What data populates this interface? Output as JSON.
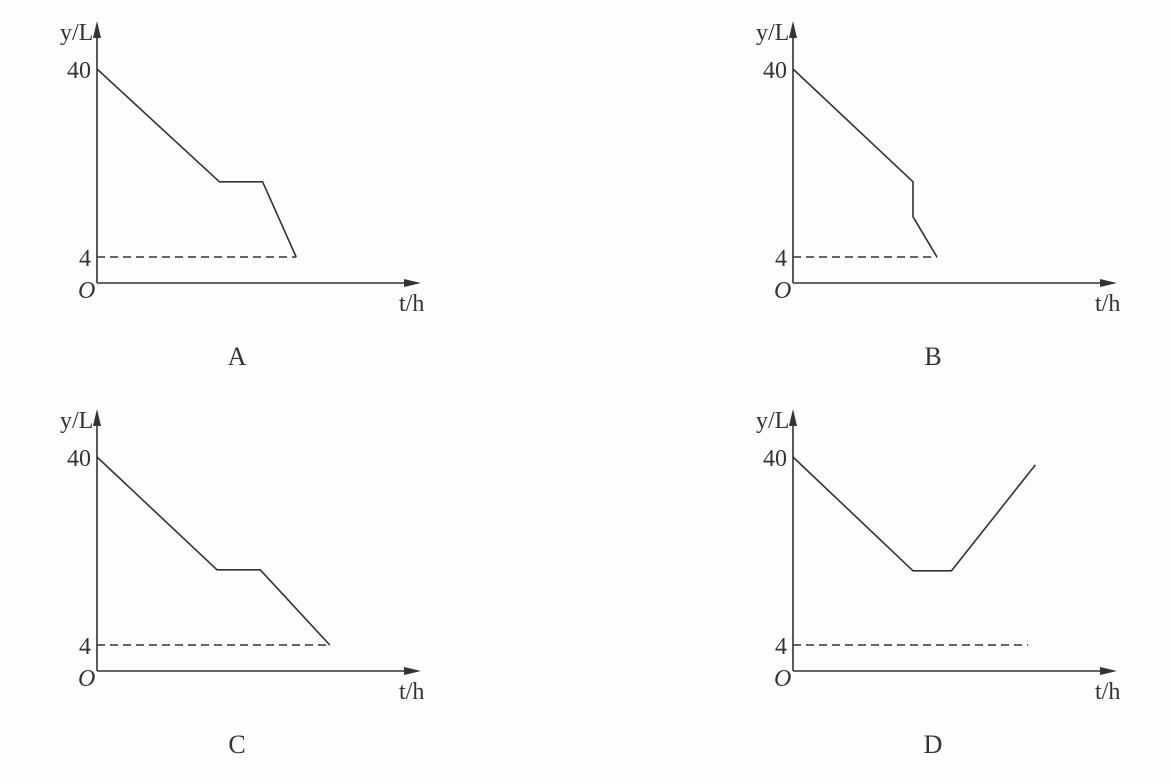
{
  "chart_data": [
    {
      "type": "line",
      "panel_label": "A",
      "ylabel": "y/L",
      "xlabel": "t/h",
      "origin_label": "O",
      "yticks": [
        4,
        40
      ],
      "series": [
        {
          "x": [
            0,
            5.1,
            6.9,
            8.3
          ],
          "y": [
            40,
            18.4,
            18.4,
            4
          ]
        }
      ],
      "dashed_reference": {
        "y": 4,
        "x_end": 8.3
      },
      "grid": false
    },
    {
      "type": "line",
      "panel_label": "B",
      "ylabel": "y/L",
      "xlabel": "t/h",
      "origin_label": "O",
      "yticks": [
        4,
        40
      ],
      "series": [
        {
          "x": [
            0,
            5.0,
            5.0,
            6.0
          ],
          "y": [
            40,
            18.4,
            11.7,
            4
          ]
        }
      ],
      "dashed_reference": {
        "y": 4,
        "x_end": 6.0
      },
      "grid": false
    },
    {
      "type": "line",
      "panel_label": "C",
      "ylabel": "y/L",
      "xlabel": "t/h",
      "origin_label": "O",
      "yticks": [
        4,
        40
      ],
      "series": [
        {
          "x": [
            0,
            5.0,
            6.8,
            9.7
          ],
          "y": [
            40,
            18.4,
            18.4,
            4
          ]
        }
      ],
      "dashed_reference": {
        "y": 4,
        "x_end": 9.7
      },
      "grid": false
    },
    {
      "type": "line",
      "panel_label": "D",
      "ylabel": "y/L",
      "xlabel": "t/h",
      "origin_label": "O",
      "yticks": [
        4,
        40
      ],
      "series": [
        {
          "x": [
            0,
            5.0,
            6.6,
            10.1
          ],
          "y": [
            40,
            18.2,
            18.2,
            38.5
          ]
        }
      ],
      "dashed_reference": {
        "y": 4,
        "x_end": 9.8
      },
      "grid": false
    }
  ]
}
